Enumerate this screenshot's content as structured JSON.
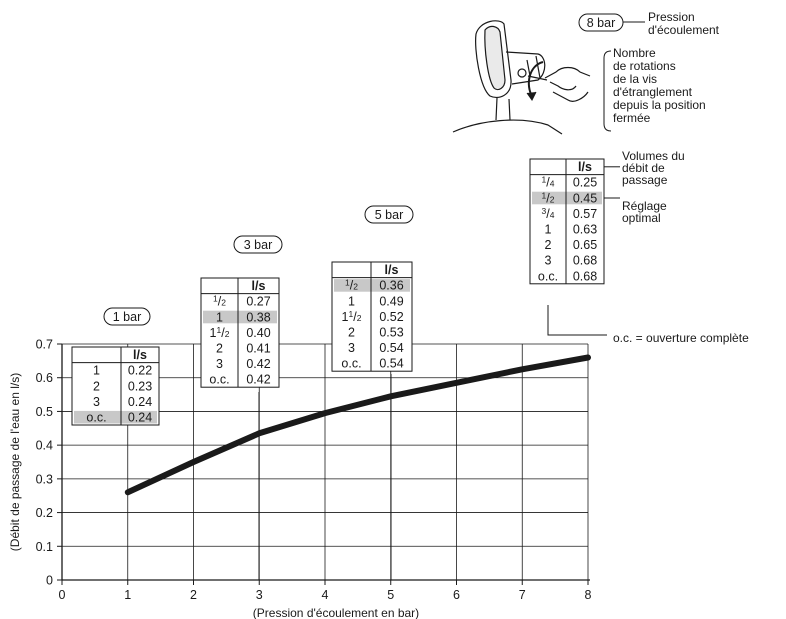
{
  "chart_data": {
    "type": "line",
    "xlabel": "(Pression d'écoulement en bar)",
    "ylabel": "(Débit de passage de l'eau en l/s)",
    "xlim": [
      0,
      8
    ],
    "ylim": [
      0,
      0.7
    ],
    "x_ticks": [
      "0",
      "1",
      "2",
      "3",
      "4",
      "5",
      "6",
      "7",
      "8"
    ],
    "y_ticks": [
      "0",
      "0.1",
      "0.2",
      "0.3",
      "0.4",
      "0.5",
      "0.6",
      "0.7"
    ],
    "grid": true,
    "series": [
      {
        "x": [
          1,
          2,
          3,
          4,
          5,
          6,
          7,
          8
        ],
        "y": [
          0.26,
          0.35,
          0.435,
          0.495,
          0.545,
          0.585,
          0.625,
          0.66
        ]
      }
    ],
    "tables": [
      {
        "pressure": "1 bar",
        "header": "l/s",
        "rows": [
          [
            "1",
            "0.22"
          ],
          [
            "2",
            "0.23"
          ],
          [
            "3",
            "0.24"
          ],
          [
            "o.c.",
            "0.24"
          ]
        ],
        "highlight_row": 3
      },
      {
        "pressure": "3 bar",
        "header": "l/s",
        "rows": [
          [
            "1/2",
            "0.27"
          ],
          [
            "1",
            "0.38"
          ],
          [
            "1 1/2",
            "0.40"
          ],
          [
            "2",
            "0.41"
          ],
          [
            "3",
            "0.42"
          ],
          [
            "o.c.",
            "0.42"
          ]
        ],
        "highlight_row": 1
      },
      {
        "pressure": "5 bar",
        "header": "l/s",
        "rows": [
          [
            "1/2",
            "0.36"
          ],
          [
            "1",
            "0.49"
          ],
          [
            "1 1/2",
            "0.52"
          ],
          [
            "2",
            "0.53"
          ],
          [
            "3",
            "0.54"
          ],
          [
            "o.c.",
            "0.54"
          ]
        ],
        "highlight_row": 0
      },
      {
        "pressure": "8 bar",
        "header": "l/s",
        "rows": [
          [
            "1/4",
            "0.25"
          ],
          [
            "1/2",
            "0.45"
          ],
          [
            "3/4",
            "0.57"
          ],
          [
            "1",
            "0.63"
          ],
          [
            "2",
            "0.65"
          ],
          [
            "3",
            "0.68"
          ],
          [
            "o.c.",
            "0.68"
          ]
        ],
        "highlight_row": 1
      }
    ],
    "annotations": {
      "pressure_label": [
        "Pression",
        "d'écoulement"
      ],
      "rotations_label": [
        "Nombre",
        "de rotations",
        "de la vis",
        "d'étranglement",
        "depuis la position",
        "fermée"
      ],
      "volumes_label": [
        "Volumes du",
        "débit de",
        "passage"
      ],
      "optimal_label": [
        "Réglage",
        "optimal"
      ],
      "oc_note": "o.c. = ouverture complète"
    }
  }
}
